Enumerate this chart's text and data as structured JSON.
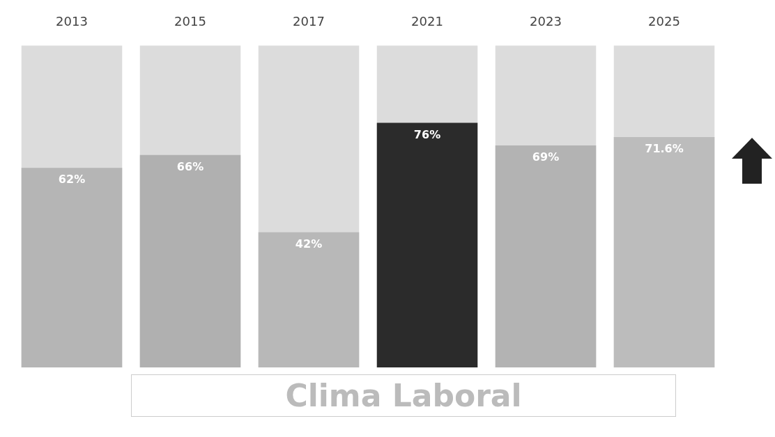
{
  "chart_data": {
    "type": "bar",
    "title": "Clima Laboral",
    "categories": [
      "2013",
      "2015",
      "2017",
      "2021",
      "2023",
      "2025"
    ],
    "values": [
      62,
      66,
      42,
      76,
      69,
      71.6
    ],
    "colors": [
      "#b5b5b5",
      "#b0b0b0",
      "#b8b8b8",
      "#2b2b2b",
      "#b3b3b3",
      "#bcbcbc"
    ],
    "value_labels": [
      "62%",
      "66%",
      "42%",
      "76%",
      "69%",
      "71.6%"
    ],
    "ylim": [
      0,
      100
    ],
    "tick_labels": "x",
    "grid": false,
    "legend": false
  }
}
